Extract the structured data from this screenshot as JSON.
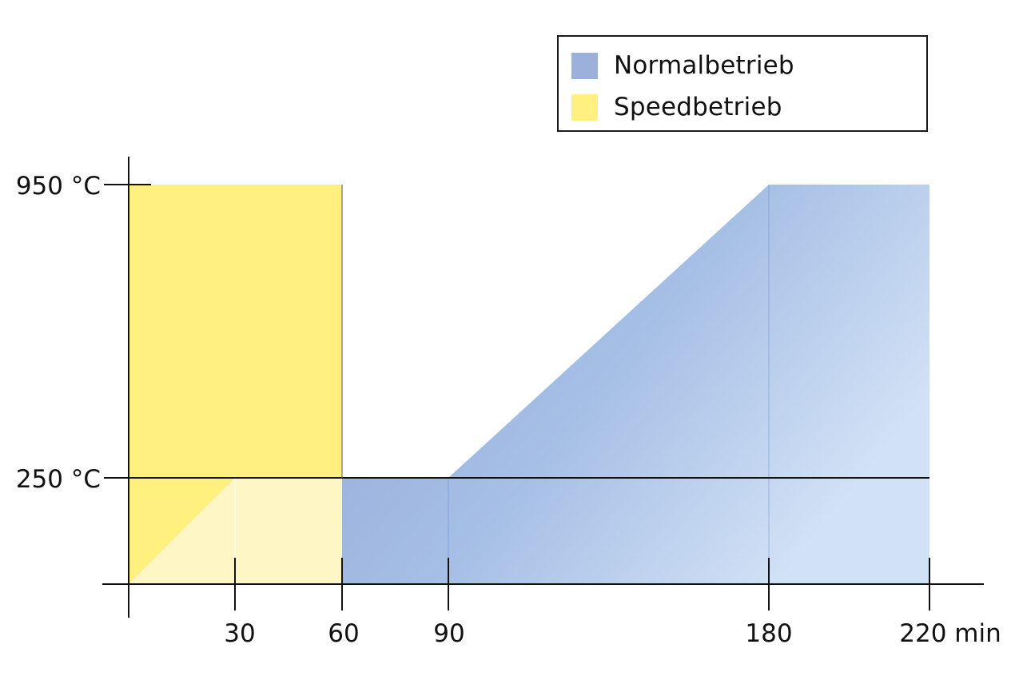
{
  "chart_data": {
    "type": "area",
    "x_unit": "min",
    "y_unit": "°C",
    "x_ticks": [
      "30",
      "60",
      "90",
      "180",
      "220 min"
    ],
    "y_ticks": [
      "950 °C",
      "250 °C"
    ],
    "series": [
      {
        "name": "Normalbetrieb",
        "color": "#9bb1dc",
        "x": [
          60,
          90,
          180,
          220
        ],
        "y": [
          250,
          250,
          950,
          950
        ]
      },
      {
        "name": "Speedbetrieb",
        "color": "#fff080",
        "x": [
          0,
          60
        ],
        "y": [
          950,
          950
        ],
        "ramp_below_250": {
          "x": [
            0,
            30
          ],
          "y": [
            0,
            250
          ]
        }
      }
    ],
    "legend_position": "top-right",
    "grid": false
  },
  "legend": {
    "items": [
      {
        "label": "Normalbetrieb",
        "color": "#9bb1dc"
      },
      {
        "label": "Speedbetrieb",
        "color": "#fff080"
      }
    ]
  }
}
